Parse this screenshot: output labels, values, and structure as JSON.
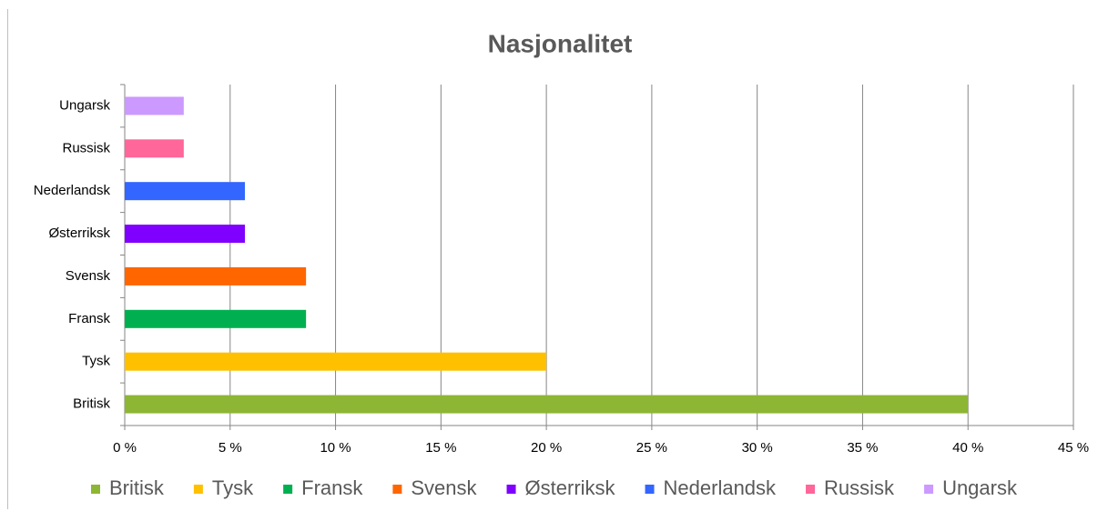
{
  "chart_data": {
    "type": "hbar",
    "title": "Nasjonalitet",
    "categories": [
      "Britisk",
      "Tysk",
      "Fransk",
      "Svensk",
      "Østerriksk",
      "Nederlandsk",
      "Russisk",
      "Ungarsk"
    ],
    "values": [
      40,
      20,
      8.6,
      8.6,
      5.7,
      5.7,
      2.8,
      2.8
    ],
    "colors": [
      "#8db634",
      "#ffc000",
      "#00b050",
      "#ff6600",
      "#7f00ff",
      "#3366ff",
      "#ff6699",
      "#cc99ff"
    ],
    "xlim": [
      0,
      45
    ],
    "xticks": [
      {
        "value": 0,
        "label": "0 %"
      },
      {
        "value": 5,
        "label": "5 %"
      },
      {
        "value": 10,
        "label": "10 %"
      },
      {
        "value": 15,
        "label": "15 %"
      },
      {
        "value": 20,
        "label": "20 %"
      },
      {
        "value": 25,
        "label": "25 %"
      },
      {
        "value": 30,
        "label": "30 %"
      },
      {
        "value": 35,
        "label": "35 %"
      },
      {
        "value": 40,
        "label": "40 %"
      },
      {
        "value": 45,
        "label": "45 %"
      }
    ],
    "grid": true,
    "legend": "bottom"
  }
}
